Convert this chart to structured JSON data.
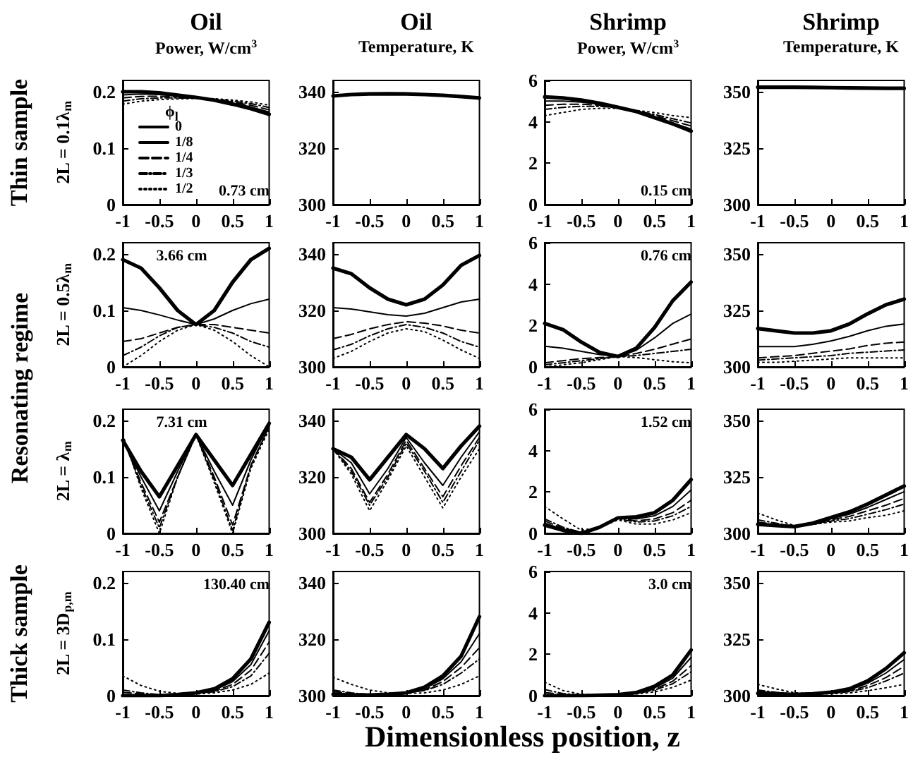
{
  "chart_data": [
    {
      "type": "line",
      "title": "Oil",
      "subtitle": "Power, W/cm$^{3}$",
      "ylabel": "2L = 0.1λ$_{m}$",
      "annotations": [
        "0.73 cm",
        "Thin sample"
      ],
      "legend": "bottom left",
      "legend_title": "ϕ$_{l}$",
      "x": [
        -1,
        -0.75,
        -0.5,
        -0.25,
        0,
        0.25,
        0.5,
        0.75,
        1
      ],
      "xlim": [
        -1,
        1
      ],
      "xticks": [
        -1,
        -0.5,
        0,
        0.5,
        1
      ],
      "ylim": [
        0,
        0.22
      ],
      "yticks": [
        0,
        0.1,
        0.2
      ],
      "series": [
        {
          "name": "0",
          "color": "#000000",
          "line_style": "solid",
          "values": [
            0.2,
            0.2,
            0.198,
            0.194,
            0.19,
            0.185,
            0.178,
            0.17,
            0.16
          ]
        },
        {
          "name": "1/8",
          "color": "#000000",
          "line_style": "solid",
          "values": [
            0.1945,
            0.1958,
            0.195,
            0.1923,
            0.1895,
            0.1857,
            0.1798,
            0.173,
            0.164
          ]
        },
        {
          "name": "1/4",
          "color": "#000000",
          "line_style": "dashed",
          "values": [
            0.189,
            0.1916,
            0.192,
            0.1906,
            0.189,
            0.1864,
            0.1816,
            0.176,
            0.168
          ]
        },
        {
          "name": "1/3",
          "color": "#000000",
          "line_style": "dashed",
          "values": [
            0.1835,
            0.1874,
            0.189,
            0.1889,
            0.1885,
            0.1871,
            0.1834,
            0.179,
            0.172
          ]
        },
        {
          "name": "1/2",
          "color": "#000000",
          "line_style": "dotted",
          "values": [
            0.178,
            0.1832,
            0.186,
            0.1872,
            0.188,
            0.1878,
            0.1852,
            0.182,
            0.176
          ]
        }
      ]
    },
    {
      "type": "line",
      "title": "Oil",
      "subtitle": "Temperature, K",
      "x": [
        -1,
        -0.75,
        -0.5,
        -0.25,
        0,
        0.25,
        0.5,
        0.75,
        1
      ],
      "xlim": [
        -1,
        1
      ],
      "xticks": [
        -1,
        -0.5,
        0,
        0.5,
        1
      ],
      "ylim": [
        300,
        344
      ],
      "yticks": [
        300,
        320,
        340
      ],
      "series": [
        {
          "color": "#000000",
          "line_style": "solid",
          "values": [
            338.5,
            339,
            339.2,
            339.3,
            339.2,
            339,
            338.7,
            338.3,
            337.8
          ]
        },
        {
          "color": "#000000",
          "line_style": "solid",
          "values": [
            null,
            null,
            null,
            null,
            null,
            null,
            null,
            null,
            null
          ]
        },
        {
          "color": "#000000",
          "line_style": "dashed",
          "values": [
            null,
            null,
            null,
            null,
            null,
            null,
            null,
            null,
            null
          ]
        },
        {
          "color": "#000000",
          "line_style": "dashed",
          "values": [
            null,
            null,
            null,
            null,
            null,
            null,
            null,
            null,
            null
          ]
        },
        {
          "color": "#000000",
          "line_style": "dotted",
          "values": [
            null,
            null,
            null,
            null,
            null,
            null,
            null,
            null,
            null
          ]
        }
      ]
    },
    {
      "type": "line",
      "title": "Shrimp",
      "subtitle": "Power, W/cm$^{3}$",
      "annotations": [
        "0.15 cm"
      ],
      "x": [
        -1,
        -0.75,
        -0.5,
        -0.25,
        0,
        0.25,
        0.5,
        0.75,
        1
      ],
      "xlim": [
        -1,
        1
      ],
      "xticks": [
        -1,
        -0.5,
        0,
        0.5,
        1
      ],
      "ylim": [
        0,
        6
      ],
      "yticks": [
        0,
        2,
        4,
        6
      ],
      "series": [
        {
          "color": "#000000",
          "line_style": "solid",
          "values": [
            5.2,
            5.15,
            5.05,
            4.9,
            4.7,
            4.5,
            4.2,
            3.9,
            3.55
          ]
        },
        {
          "color": "#000000",
          "line_style": "solid",
          "values": [
            5.0,
            5.0,
            4.95,
            4.85,
            4.7,
            4.5,
            4.25,
            3.95,
            3.65
          ]
        },
        {
          "color": "#000000",
          "line_style": "dashed",
          "values": [
            4.8,
            4.85,
            4.85,
            4.8,
            4.7,
            4.52,
            4.3,
            4.05,
            3.8
          ]
        },
        {
          "color": "#000000",
          "line_style": "dashed",
          "values": [
            4.6,
            4.7,
            4.75,
            4.75,
            4.68,
            4.55,
            4.35,
            4.15,
            3.95
          ]
        },
        {
          "color": "#000000",
          "line_style": "dotted",
          "values": [
            4.3,
            4.45,
            4.6,
            4.65,
            4.65,
            4.55,
            4.45,
            4.3,
            4.2
          ]
        }
      ]
    },
    {
      "type": "line",
      "title": "Shrimp",
      "subtitle": "Temperature, K",
      "x": [
        -1,
        -0.75,
        -0.5,
        -0.25,
        0,
        0.25,
        0.5,
        0.75,
        1
      ],
      "xlim": [
        -1,
        1
      ],
      "xticks": [
        -1,
        -0.5,
        0,
        0.5,
        1
      ],
      "ylim": [
        300,
        355
      ],
      "yticks": [
        300,
        325,
        350
      ],
      "series": [
        {
          "color": "#000000",
          "line_style": "solid",
          "values": [
            352,
            352,
            352,
            351.9,
            351.8,
            351.7,
            351.6,
            351.5,
            351.5
          ]
        },
        {
          "color": "#000000",
          "line_style": "solid",
          "values": [
            null,
            null,
            null,
            null,
            null,
            null,
            null,
            null,
            null
          ]
        },
        {
          "color": "#000000",
          "line_style": "dashed",
          "values": [
            null,
            null,
            null,
            null,
            null,
            null,
            null,
            null,
            null
          ]
        },
        {
          "color": "#000000",
          "line_style": "dashed",
          "values": [
            null,
            null,
            null,
            null,
            null,
            null,
            null,
            null,
            null
          ]
        },
        {
          "color": "#000000",
          "line_style": "dotted",
          "values": [
            null,
            null,
            null,
            null,
            null,
            null,
            null,
            null,
            null
          ]
        }
      ]
    },
    {
      "type": "line",
      "ylabel": "2L = 0.5λ$_{m}$",
      "annotations": [
        "3.66 cm",
        "Resonating regime"
      ],
      "x": [
        -1,
        -0.75,
        -0.5,
        -0.25,
        0,
        0.25,
        0.5,
        0.75,
        1
      ],
      "xlim": [
        -1,
        1
      ],
      "xticks": [
        -1,
        -0.5,
        0,
        0.5,
        1
      ],
      "ylim": [
        0,
        0.22
      ],
      "yticks": [
        0,
        0.1,
        0.2
      ],
      "series": [
        {
          "color": "#000000",
          "line_style": "solid",
          "values": [
            0.19,
            0.175,
            0.14,
            0.1,
            0.075,
            0.1,
            0.15,
            0.19,
            0.21
          ]
        },
        {
          "color": "#000000",
          "line_style": "solid",
          "values": [
            0.105,
            0.1,
            0.092,
            0.083,
            0.075,
            0.085,
            0.1,
            0.112,
            0.12
          ]
        },
        {
          "color": "#000000",
          "line_style": "dashed",
          "values": [
            0.045,
            0.05,
            0.06,
            0.07,
            0.075,
            0.075,
            0.07,
            0.065,
            0.06
          ]
        },
        {
          "color": "#000000",
          "line_style": "dashed",
          "values": [
            0.02,
            0.035,
            0.055,
            0.07,
            0.075,
            0.07,
            0.06,
            0.045,
            0.035
          ]
        },
        {
          "color": "#000000",
          "line_style": "dotted",
          "values": [
            0.0,
            0.02,
            0.045,
            0.065,
            0.075,
            0.065,
            0.045,
            0.02,
            0.0
          ]
        }
      ]
    },
    {
      "type": "line",
      "x": [
        -1,
        -0.75,
        -0.5,
        -0.25,
        0,
        0.25,
        0.5,
        0.75,
        1
      ],
      "xlim": [
        -1,
        1
      ],
      "xticks": [
        -1,
        -0.5,
        0,
        0.5,
        1
      ],
      "ylim": [
        300,
        344
      ],
      "yticks": [
        300,
        320,
        340
      ],
      "series": [
        {
          "color": "#000000",
          "line_style": "solid",
          "values": [
            335,
            333,
            328,
            324,
            322,
            324,
            329,
            336,
            339.5
          ]
        },
        {
          "color": "#000000",
          "line_style": "solid",
          "values": [
            321,
            320.5,
            319.5,
            318.5,
            318,
            319,
            321,
            323,
            324
          ]
        },
        {
          "color": "#000000",
          "line_style": "dashed",
          "values": [
            310,
            311.5,
            313.5,
            315,
            316,
            315.5,
            314.5,
            313,
            312
          ]
        },
        {
          "color": "#000000",
          "line_style": "dashed",
          "values": [
            306,
            308,
            311,
            313.5,
            315,
            314,
            312,
            309,
            307
          ]
        },
        {
          "color": "#000000",
          "line_style": "dotted",
          "values": [
            303,
            305.5,
            309,
            312,
            313.5,
            312.5,
            309.5,
            306,
            303
          ]
        }
      ]
    },
    {
      "type": "line",
      "annotations": [
        "0.76 cm"
      ],
      "x": [
        -1,
        -0.75,
        -0.5,
        -0.25,
        0,
        0.25,
        0.5,
        0.75,
        1
      ],
      "xlim": [
        -1,
        1
      ],
      "xticks": [
        -1,
        -0.5,
        0,
        0.5,
        1
      ],
      "ylim": [
        0,
        6
      ],
      "yticks": [
        0,
        2,
        4,
        6
      ],
      "series": [
        {
          "color": "#000000",
          "line_style": "solid",
          "values": [
            2.1,
            1.8,
            1.2,
            0.7,
            0.5,
            0.9,
            1.9,
            3.2,
            4.1
          ]
        },
        {
          "color": "#000000",
          "line_style": "solid",
          "values": [
            1.0,
            0.9,
            0.75,
            0.6,
            0.5,
            0.8,
            1.4,
            2.1,
            2.55
          ]
        },
        {
          "color": "#000000",
          "line_style": "dashed",
          "values": [
            0.2,
            0.3,
            0.4,
            0.45,
            0.5,
            0.65,
            0.85,
            1.1,
            1.35
          ]
        },
        {
          "color": "#000000",
          "line_style": "dashed",
          "values": [
            0.1,
            0.2,
            0.3,
            0.4,
            0.5,
            0.55,
            0.65,
            0.75,
            0.85
          ]
        },
        {
          "color": "#000000",
          "line_style": "dotted",
          "values": [
            0.0,
            0.1,
            0.2,
            0.35,
            0.5,
            0.45,
            0.35,
            0.25,
            0.2
          ]
        }
      ]
    },
    {
      "type": "line",
      "x": [
        -1,
        -0.75,
        -0.5,
        -0.25,
        0,
        0.25,
        0.5,
        0.75,
        1
      ],
      "xlim": [
        -1,
        1
      ],
      "xticks": [
        -1,
        -0.5,
        0,
        0.5,
        1
      ],
      "ylim": [
        300,
        355
      ],
      "yticks": [
        300,
        325,
        350
      ],
      "series": [
        {
          "color": "#000000",
          "line_style": "solid",
          "values": [
            317,
            316,
            315,
            315,
            316,
            319,
            323.5,
            327.5,
            330
          ]
        },
        {
          "color": "#000000",
          "line_style": "solid",
          "values": [
            309,
            309,
            309,
            310,
            311.5,
            313.5,
            316,
            318,
            319
          ]
        },
        {
          "color": "#000000",
          "line_style": "dashed",
          "values": [
            304,
            304.5,
            305,
            306,
            307,
            308,
            309.5,
            310.5,
            311
          ]
        },
        {
          "color": "#000000",
          "line_style": "dashed",
          "values": [
            303,
            303.5,
            304,
            304.5,
            305,
            306,
            306.5,
            307,
            307.5
          ]
        },
        {
          "color": "#000000",
          "line_style": "dotted",
          "values": [
            302,
            302,
            302.5,
            303,
            303.5,
            304,
            304,
            304,
            304
          ]
        }
      ]
    },
    {
      "type": "line",
      "ylabel": "2L = λ$_{m}$",
      "annotations": [
        "7.31 cm"
      ],
      "x": [
        -1,
        -0.75,
        -0.5,
        -0.25,
        0,
        0.25,
        0.5,
        0.75,
        1
      ],
      "xlim": [
        -1,
        1
      ],
      "xticks": [
        -1,
        -0.5,
        0,
        0.5,
        1
      ],
      "ylim": [
        0,
        0.22
      ],
      "yticks": [
        0,
        0.1,
        0.2
      ],
      "series": [
        {
          "color": "#000000",
          "line_style": "solid",
          "values": [
            0.165,
            0.11,
            0.065,
            0.12,
            0.175,
            0.13,
            0.085,
            0.14,
            0.195
          ]
        },
        {
          "color": "#000000",
          "line_style": "solid",
          "values": [
            0.165,
            0.1,
            0.04,
            0.11,
            0.175,
            0.11,
            0.05,
            0.13,
            0.195
          ]
        },
        {
          "color": "#000000",
          "line_style": "dashed",
          "values": [
            0.17,
            0.09,
            0.02,
            0.1,
            0.175,
            0.1,
            0.015,
            0.12,
            0.19
          ]
        },
        {
          "color": "#000000",
          "line_style": "dashed",
          "values": [
            0.17,
            0.085,
            0.01,
            0.1,
            0.175,
            0.095,
            0.005,
            0.12,
            0.19
          ]
        },
        {
          "color": "#000000",
          "line_style": "dotted",
          "values": [
            0.175,
            0.08,
            0,
            0.1,
            0.175,
            0.09,
            0,
            0.115,
            0.185
          ]
        }
      ]
    },
    {
      "type": "line",
      "x": [
        -1,
        -0.75,
        -0.5,
        -0.25,
        0,
        0.25,
        0.5,
        0.75,
        1
      ],
      "xlim": [
        -1,
        1
      ],
      "xticks": [
        -1,
        -0.5,
        0,
        0.5,
        1
      ],
      "ylim": [
        300,
        344
      ],
      "yticks": [
        300,
        320,
        340
      ],
      "series": [
        {
          "color": "#000000",
          "line_style": "solid",
          "values": [
            330,
            327,
            319,
            327,
            335,
            330,
            323,
            331,
            338
          ]
        },
        {
          "color": "#000000",
          "line_style": "solid",
          "values": [
            330,
            325,
            314,
            323,
            334,
            325,
            317,
            327,
            336
          ]
        },
        {
          "color": "#000000",
          "line_style": "dashed",
          "values": [
            330,
            323,
            311,
            321,
            333,
            323,
            313,
            324,
            334
          ]
        },
        {
          "color": "#000000",
          "line_style": "dashed",
          "values": [
            330,
            322,
            310,
            320,
            332,
            322,
            311,
            322,
            333
          ]
        },
        {
          "color": "#000000",
          "line_style": "dotted",
          "values": [
            330,
            321,
            308,
            319,
            331,
            320,
            309,
            320,
            330
          ]
        }
      ]
    },
    {
      "type": "line",
      "annotations": [
        "1.52 cm"
      ],
      "x": [
        -1,
        -0.75,
        -0.5,
        -0.25,
        0,
        0.25,
        0.5,
        0.75,
        1
      ],
      "xlim": [
        -1,
        1
      ],
      "xticks": [
        -1,
        -0.5,
        0,
        0.5,
        1
      ],
      "ylim": [
        0,
        6
      ],
      "yticks": [
        0,
        2,
        4,
        6
      ],
      "series": [
        {
          "color": "#000000",
          "line_style": "solid",
          "values": [
            0.4,
            0.15,
            0,
            0.3,
            0.75,
            0.8,
            1.0,
            1.6,
            2.6
          ]
        },
        {
          "color": "#000000",
          "line_style": "solid",
          "values": [
            0.5,
            0.2,
            0.02,
            0.3,
            0.75,
            0.7,
            0.85,
            1.3,
            2.1
          ]
        },
        {
          "color": "#000000",
          "line_style": "dashed",
          "values": [
            0.6,
            0.25,
            0.05,
            0.3,
            0.75,
            0.6,
            0.7,
            1.0,
            1.6
          ]
        },
        {
          "color": "#000000",
          "line_style": "dashed",
          "values": [
            0.7,
            0.3,
            0.05,
            0.3,
            0.7,
            0.55,
            0.6,
            0.85,
            1.3
          ]
        },
        {
          "color": "#000000",
          "line_style": "dotted",
          "values": [
            1.3,
            0.7,
            0.15,
            0.3,
            0.65,
            0.45,
            0.45,
            0.65,
            1.0
          ]
        }
      ]
    },
    {
      "type": "line",
      "x": [
        -1,
        -0.75,
        -0.5,
        -0.25,
        0,
        0.25,
        0.5,
        0.75,
        1
      ],
      "xlim": [
        -1,
        1
      ],
      "xticks": [
        -1,
        -0.5,
        0,
        0.5,
        1
      ],
      "ylim": [
        300,
        355
      ],
      "yticks": [
        300,
        325,
        350
      ],
      "series": [
        {
          "color": "#000000",
          "line_style": "solid",
          "values": [
            304,
            303.5,
            303,
            304.5,
            307,
            309.5,
            313,
            317,
            321
          ]
        },
        {
          "color": "#000000",
          "line_style": "solid",
          "values": [
            304,
            303.5,
            303,
            304.5,
            306.5,
            308.5,
            311.5,
            315,
            318.5
          ]
        },
        {
          "color": "#000000",
          "line_style": "dashed",
          "values": [
            305,
            304,
            303,
            304,
            306,
            307.5,
            310,
            312.5,
            315.5
          ]
        },
        {
          "color": "#000000",
          "line_style": "dashed",
          "values": [
            306,
            304.5,
            303,
            304,
            305.5,
            306.5,
            308.5,
            310.5,
            313
          ]
        },
        {
          "color": "#000000",
          "line_style": "dotted",
          "values": [
            309,
            306,
            303.5,
            304,
            305,
            305.5,
            307,
            308,
            310
          ]
        }
      ]
    },
    {
      "type": "line",
      "ylabel": "2L = 3D$_{p,m}$",
      "xlabel": "Dimensionless position, z",
      "annotations": [
        "130.40 cm",
        "Thick sample"
      ],
      "x": [
        -1,
        -0.75,
        -0.5,
        -0.25,
        0,
        0.25,
        0.5,
        0.75,
        1
      ],
      "xlim": [
        -1,
        1
      ],
      "xticks": [
        -1,
        -0.5,
        0,
        0.5,
        1
      ],
      "ylim": [
        0,
        0.22
      ],
      "yticks": [
        0,
        0.1,
        0.2
      ],
      "series": [
        {
          "color": "#000000",
          "line_style": "solid",
          "values": [
            0,
            0,
            0,
            0.002,
            0.005,
            0.012,
            0.03,
            0.065,
            0.13
          ]
        },
        {
          "color": "#000000",
          "line_style": "solid",
          "values": [
            0.002,
            0.001,
            0.001,
            0.002,
            0.005,
            0.01,
            0.025,
            0.055,
            0.115
          ]
        },
        {
          "color": "#000000",
          "line_style": "dashed",
          "values": [
            0.006,
            0.003,
            0.001,
            0.002,
            0.004,
            0.008,
            0.02,
            0.045,
            0.095
          ]
        },
        {
          "color": "#000000",
          "line_style": "dashed",
          "values": [
            0.01,
            0.005,
            0.002,
            0.002,
            0.004,
            0.007,
            0.016,
            0.035,
            0.075
          ]
        },
        {
          "color": "#000000",
          "line_style": "dotted",
          "values": [
            0.035,
            0.018,
            0.008,
            0.004,
            0.003,
            0.005,
            0.01,
            0.02,
            0.04
          ]
        }
      ]
    },
    {
      "type": "line",
      "x": [
        -1,
        -0.75,
        -0.5,
        -0.25,
        0,
        0.25,
        0.5,
        0.75,
        1
      ],
      "xlim": [
        -1,
        1
      ],
      "xticks": [
        -1,
        -0.5,
        0,
        0.5,
        1
      ],
      "ylim": [
        300,
        344
      ],
      "yticks": [
        300,
        320,
        340
      ],
      "series": [
        {
          "color": "#000000",
          "line_style": "solid",
          "values": [
            300.5,
            300.3,
            300.2,
            300.5,
            301,
            303,
            307,
            314,
            328
          ]
        },
        {
          "color": "#000000",
          "line_style": "solid",
          "values": [
            301,
            300.5,
            300.2,
            300.5,
            301,
            302.5,
            306,
            312,
            322
          ]
        },
        {
          "color": "#000000",
          "line_style": "dashed",
          "values": [
            301.5,
            300.7,
            300.3,
            300.5,
            301,
            302,
            305,
            310,
            317
          ]
        },
        {
          "color": "#000000",
          "line_style": "dashed",
          "values": [
            302,
            301,
            300.4,
            300.5,
            301,
            301.8,
            304,
            308,
            313
          ]
        },
        {
          "color": "#000000",
          "line_style": "dotted",
          "values": [
            306.5,
            304,
            302,
            301,
            300.8,
            301,
            302,
            304,
            307
          ]
        }
      ]
    },
    {
      "type": "line",
      "annotations": [
        "3.0 cm"
      ],
      "x": [
        -1,
        -0.75,
        -0.5,
        -0.25,
        0,
        0.25,
        0.5,
        0.75,
        1
      ],
      "xlim": [
        -1,
        1
      ],
      "xticks": [
        -1,
        -0.5,
        0,
        0.5,
        1
      ],
      "ylim": [
        0,
        6
      ],
      "yticks": [
        0,
        2,
        4,
        6
      ],
      "series": [
        {
          "color": "#000000",
          "line_style": "solid",
          "values": [
            0,
            0,
            0,
            0.02,
            0.05,
            0.15,
            0.45,
            1.0,
            2.2
          ]
        },
        {
          "color": "#000000",
          "line_style": "solid",
          "values": [
            0.05,
            0.02,
            0.01,
            0.02,
            0.05,
            0.13,
            0.38,
            0.85,
            1.85
          ]
        },
        {
          "color": "#000000",
          "line_style": "dashed",
          "values": [
            0.15,
            0.06,
            0.02,
            0.03,
            0.05,
            0.12,
            0.32,
            0.7,
            1.45
          ]
        },
        {
          "color": "#000000",
          "line_style": "dashed",
          "values": [
            0.3,
            0.1,
            0.03,
            0.03,
            0.05,
            0.1,
            0.27,
            0.58,
            1.15
          ]
        },
        {
          "color": "#000000",
          "line_style": "dotted",
          "values": [
            0.65,
            0.25,
            0.07,
            0.04,
            0.05,
            0.08,
            0.18,
            0.4,
            0.75
          ]
        }
      ]
    },
    {
      "type": "line",
      "x": [
        -1,
        -0.75,
        -0.5,
        -0.25,
        0,
        0.25,
        0.5,
        0.75,
        1
      ],
      "xlim": [
        -1,
        1
      ],
      "xticks": [
        -1,
        -0.5,
        0,
        0.5,
        1
      ],
      "ylim": [
        300,
        355
      ],
      "yticks": [
        300,
        325,
        350
      ],
      "series": [
        {
          "color": "#000000",
          "line_style": "solid",
          "values": [
            301,
            300.8,
            300.5,
            300.8,
            301.5,
            303,
            306.5,
            312,
            319
          ]
        },
        {
          "color": "#000000",
          "line_style": "solid",
          "values": [
            301.5,
            301,
            300.7,
            300.8,
            301.3,
            302.5,
            305.5,
            310,
            316
          ]
        },
        {
          "color": "#000000",
          "line_style": "dashed",
          "values": [
            302,
            301.3,
            300.7,
            300.8,
            301.2,
            302,
            304.5,
            308,
            313
          ]
        },
        {
          "color": "#000000",
          "line_style": "dashed",
          "values": [
            302.5,
            301.5,
            300.8,
            300.8,
            301,
            301.8,
            303.5,
            306.5,
            310
          ]
        },
        {
          "color": "#000000",
          "line_style": "dotted",
          "values": [
            305,
            303,
            301.3,
            300.8,
            300.8,
            301.2,
            302.2,
            303.5,
            305
          ]
        }
      ]
    }
  ]
}
